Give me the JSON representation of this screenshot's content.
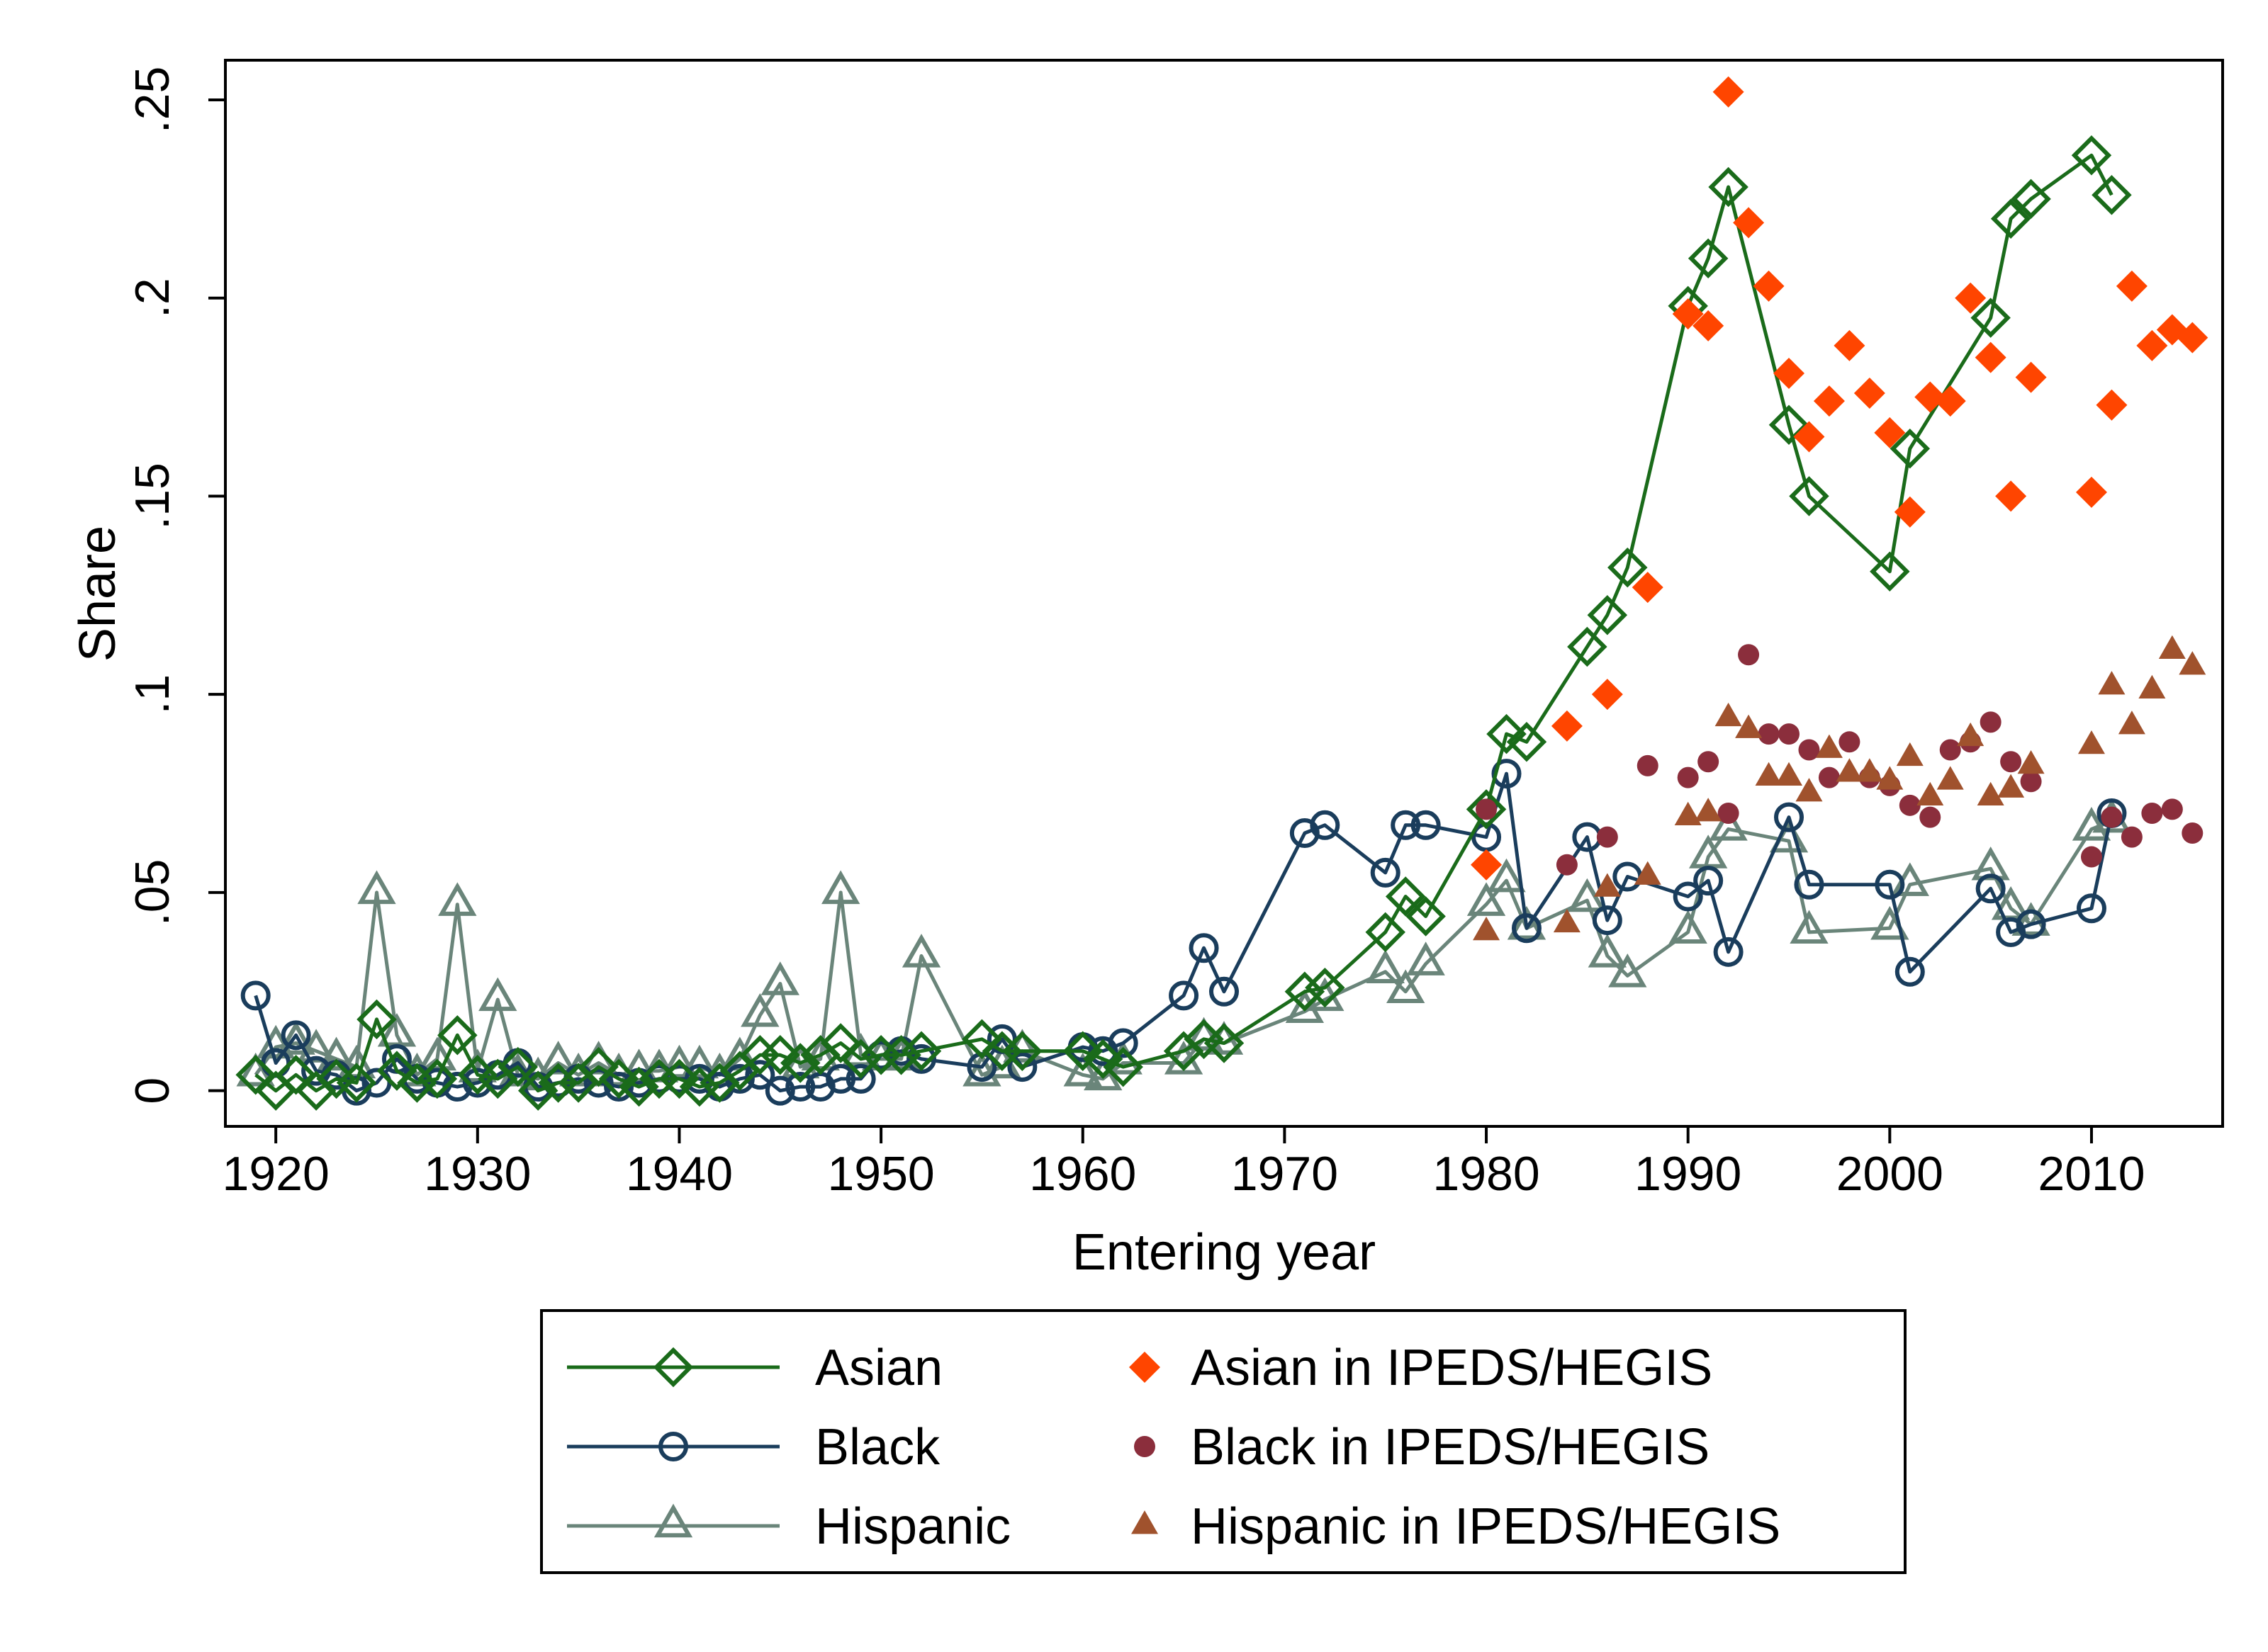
{
  "chart_data": {
    "type": "scatter",
    "title": "",
    "xlabel": "Entering year",
    "ylabel": "Share",
    "xlim": [
      1917.5,
      2016.5
    ],
    "ylim": [
      -0.009,
      0.26
    ],
    "x_ticks": [
      1920,
      1930,
      1940,
      1950,
      1960,
      1970,
      1980,
      1990,
      2000,
      2010
    ],
    "x_tick_labels": [
      "1920",
      "1930",
      "1940",
      "1950",
      "1960",
      "1970",
      "1980",
      "1990",
      "2000",
      "2010"
    ],
    "y_ticks": [
      0,
      0.05,
      0.1,
      0.15,
      0.2,
      0.25
    ],
    "y_tick_labels": [
      "0",
      ".05",
      ".1",
      ".15",
      ".2",
      ".25"
    ],
    "grid": false,
    "legend_position": "bottom",
    "series": [
      {
        "name": "Asian",
        "style": "line-marker",
        "marker": "diamond-hollow",
        "color": "#1a6b1a",
        "points": [
          [
            1919,
            0.004
          ],
          [
            1920,
            0.0
          ],
          [
            1921,
            0.004
          ],
          [
            1922,
            0.0
          ],
          [
            1923,
            0.003
          ],
          [
            1924,
            0.002
          ],
          [
            1925,
            0.018
          ],
          [
            1926,
            0.005
          ],
          [
            1927,
            0.002
          ],
          [
            1928,
            0.003
          ],
          [
            1929,
            0.014
          ],
          [
            1930,
            0.004
          ],
          [
            1931,
            0.003
          ],
          [
            1932,
            0.006
          ],
          [
            1933,
            0.0
          ],
          [
            1934,
            0.002
          ],
          [
            1935,
            0.002
          ],
          [
            1936,
            0.006
          ],
          [
            1937,
            0.003
          ],
          [
            1938,
            0.001
          ],
          [
            1939,
            0.003
          ],
          [
            1940,
            0.003
          ],
          [
            1941,
            0.001
          ],
          [
            1942,
            0.002
          ],
          [
            1943,
            0.005
          ],
          [
            1944,
            0.009
          ],
          [
            1945,
            0.009
          ],
          [
            1946,
            0.007
          ],
          [
            1947,
            0.009
          ],
          [
            1948,
            0.012
          ],
          [
            1949,
            0.008
          ],
          [
            1950,
            0.009
          ],
          [
            1951,
            0.009
          ],
          [
            1952,
            0.01
          ],
          [
            1955,
            0.013
          ],
          [
            1956,
            0.01
          ],
          [
            1957,
            0.01
          ],
          [
            1960,
            0.01
          ],
          [
            1961,
            0.008
          ],
          [
            1962,
            0.006
          ],
          [
            1965,
            0.01
          ],
          [
            1966,
            0.013
          ],
          [
            1967,
            0.012
          ],
          [
            1971,
            0.025
          ],
          [
            1972,
            0.026
          ],
          [
            1975,
            0.04
          ],
          [
            1976,
            0.049
          ],
          [
            1977,
            0.044
          ],
          [
            1980,
            0.071
          ],
          [
            1981,
            0.09
          ],
          [
            1982,
            0.088
          ],
          [
            1985,
            0.112
          ],
          [
            1986,
            0.12
          ],
          [
            1987,
            0.132
          ],
          [
            1990,
            0.198
          ],
          [
            1991,
            0.21
          ],
          [
            1992,
            0.228
          ],
          [
            1995,
            0.168
          ],
          [
            1996,
            0.15
          ],
          [
            2000,
            0.131
          ],
          [
            2001,
            0.162
          ],
          [
            2005,
            0.195
          ],
          [
            2006,
            0.22
          ],
          [
            2007,
            0.225
          ],
          [
            2010,
            0.236
          ],
          [
            2011,
            0.226
          ]
        ]
      },
      {
        "name": "Black",
        "style": "line-marker",
        "marker": "circle-hollow",
        "color": "#1a3d5c",
        "points": [
          [
            1919,
            0.024
          ],
          [
            1920,
            0.007
          ],
          [
            1921,
            0.014
          ],
          [
            1922,
            0.005
          ],
          [
            1923,
            0.004
          ],
          [
            1924,
            0.0
          ],
          [
            1925,
            0.002
          ],
          [
            1926,
            0.008
          ],
          [
            1927,
            0.003
          ],
          [
            1928,
            0.002
          ],
          [
            1929,
            0.001
          ],
          [
            1930,
            0.002
          ],
          [
            1931,
            0.004
          ],
          [
            1932,
            0.007
          ],
          [
            1933,
            0.001
          ],
          [
            1934,
            0.002
          ],
          [
            1935,
            0.003
          ],
          [
            1936,
            0.002
          ],
          [
            1937,
            0.001
          ],
          [
            1938,
            0.002
          ],
          [
            1939,
            0.003
          ],
          [
            1940,
            0.003
          ],
          [
            1941,
            0.003
          ],
          [
            1942,
            0.001
          ],
          [
            1943,
            0.003
          ],
          [
            1944,
            0.004
          ],
          [
            1945,
            0.0
          ],
          [
            1946,
            0.001
          ],
          [
            1947,
            0.001
          ],
          [
            1948,
            0.003
          ],
          [
            1949,
            0.003
          ],
          [
            1950,
            0.009
          ],
          [
            1951,
            0.01
          ],
          [
            1952,
            0.008
          ],
          [
            1955,
            0.006
          ],
          [
            1956,
            0.013
          ],
          [
            1957,
            0.006
          ],
          [
            1960,
            0.011
          ],
          [
            1961,
            0.01
          ],
          [
            1962,
            0.012
          ],
          [
            1965,
            0.024
          ],
          [
            1966,
            0.036
          ],
          [
            1967,
            0.025
          ],
          [
            1971,
            0.065
          ],
          [
            1972,
            0.067
          ],
          [
            1975,
            0.055
          ],
          [
            1976,
            0.067
          ],
          [
            1977,
            0.067
          ],
          [
            1980,
            0.064
          ],
          [
            1981,
            0.08
          ],
          [
            1982,
            0.041
          ],
          [
            1985,
            0.064
          ],
          [
            1986,
            0.043
          ],
          [
            1987,
            0.054
          ],
          [
            1990,
            0.049
          ],
          [
            1991,
            0.053
          ],
          [
            1992,
            0.035
          ],
          [
            1995,
            0.069
          ],
          [
            1996,
            0.052
          ],
          [
            2000,
            0.052
          ],
          [
            2001,
            0.03
          ],
          [
            2005,
            0.051
          ],
          [
            2006,
            0.04
          ],
          [
            2007,
            0.042
          ],
          [
            2010,
            0.046
          ],
          [
            2011,
            0.07
          ]
        ]
      },
      {
        "name": "Hispanic",
        "style": "line-marker",
        "marker": "triangle-hollow",
        "color": "#6a857a",
        "points": [
          [
            1919,
            0.004
          ],
          [
            1920,
            0.011
          ],
          [
            1921,
            0.012
          ],
          [
            1922,
            0.01
          ],
          [
            1923,
            0.008
          ],
          [
            1924,
            0.006
          ],
          [
            1925,
            0.05
          ],
          [
            1926,
            0.014
          ],
          [
            1927,
            0.004
          ],
          [
            1928,
            0.008
          ],
          [
            1929,
            0.047
          ],
          [
            1930,
            0.005
          ],
          [
            1931,
            0.023
          ],
          [
            1932,
            0.004
          ],
          [
            1933,
            0.003
          ],
          [
            1934,
            0.007
          ],
          [
            1935,
            0.004
          ],
          [
            1936,
            0.007
          ],
          [
            1937,
            0.004
          ],
          [
            1938,
            0.005
          ],
          [
            1939,
            0.005
          ],
          [
            1940,
            0.006
          ],
          [
            1941,
            0.006
          ],
          [
            1942,
            0.004
          ],
          [
            1943,
            0.008
          ],
          [
            1944,
            0.019
          ],
          [
            1945,
            0.027
          ],
          [
            1946,
            0.006
          ],
          [
            1947,
            0.008
          ],
          [
            1948,
            0.05
          ],
          [
            1949,
            0.009
          ],
          [
            1950,
            0.008
          ],
          [
            1951,
            0.008
          ],
          [
            1952,
            0.034
          ],
          [
            1955,
            0.004
          ],
          [
            1956,
            0.006
          ],
          [
            1957,
            0.01
          ],
          [
            1960,
            0.004
          ],
          [
            1961,
            0.003
          ],
          [
            1962,
            0.007
          ],
          [
            1965,
            0.007
          ],
          [
            1966,
            0.013
          ],
          [
            1967,
            0.012
          ],
          [
            1971,
            0.02
          ],
          [
            1972,
            0.023
          ],
          [
            1975,
            0.03
          ],
          [
            1976,
            0.025
          ],
          [
            1977,
            0.032
          ],
          [
            1980,
            0.047
          ],
          [
            1981,
            0.053
          ],
          [
            1982,
            0.041
          ],
          [
            1985,
            0.048
          ],
          [
            1986,
            0.034
          ],
          [
            1987,
            0.029
          ],
          [
            1990,
            0.04
          ],
          [
            1991,
            0.059
          ],
          [
            1992,
            0.066
          ],
          [
            1995,
            0.063
          ],
          [
            1996,
            0.04
          ],
          [
            2000,
            0.041
          ],
          [
            2001,
            0.052
          ],
          [
            2005,
            0.056
          ],
          [
            2006,
            0.046
          ],
          [
            2007,
            0.042
          ],
          [
            2010,
            0.066
          ],
          [
            2011,
            0.068
          ]
        ]
      },
      {
        "name": "Asian in IPEDS/HEGIS",
        "style": "marker",
        "marker": "diamond-filled",
        "color": "#ff4500",
        "points": [
          [
            1980,
            0.057
          ],
          [
            1984,
            0.092
          ],
          [
            1986,
            0.1
          ],
          [
            1988,
            0.127
          ],
          [
            1990,
            0.196
          ],
          [
            1991,
            0.193
          ],
          [
            1992,
            0.252
          ],
          [
            1993,
            0.219
          ],
          [
            1994,
            0.203
          ],
          [
            1995,
            0.181
          ],
          [
            1996,
            0.165
          ],
          [
            1997,
            0.174
          ],
          [
            1998,
            0.188
          ],
          [
            1999,
            0.176
          ],
          [
            2000,
            0.166
          ],
          [
            2001,
            0.146
          ],
          [
            2002,
            0.175
          ],
          [
            2003,
            0.174
          ],
          [
            2004,
            0.2
          ],
          [
            2005,
            0.185
          ],
          [
            2006,
            0.15
          ],
          [
            2007,
            0.18
          ],
          [
            2010,
            0.151
          ],
          [
            2011,
            0.173
          ],
          [
            2012,
            0.203
          ],
          [
            2013,
            0.188
          ],
          [
            2014,
            0.192
          ],
          [
            2015,
            0.19
          ]
        ]
      },
      {
        "name": "Black in IPEDS/HEGIS",
        "style": "marker",
        "marker": "circle-filled",
        "color": "#8b2e3c",
        "points": [
          [
            1980,
            0.071
          ],
          [
            1984,
            0.057
          ],
          [
            1986,
            0.064
          ],
          [
            1988,
            0.082
          ],
          [
            1990,
            0.079
          ],
          [
            1991,
            0.083
          ],
          [
            1992,
            0.07
          ],
          [
            1993,
            0.11
          ],
          [
            1994,
            0.09
          ],
          [
            1995,
            0.09
          ],
          [
            1996,
            0.086
          ],
          [
            1997,
            0.079
          ],
          [
            1998,
            0.088
          ],
          [
            1999,
            0.079
          ],
          [
            2000,
            0.077
          ],
          [
            2001,
            0.072
          ],
          [
            2002,
            0.069
          ],
          [
            2003,
            0.086
          ],
          [
            2004,
            0.088
          ],
          [
            2005,
            0.093
          ],
          [
            2006,
            0.083
          ],
          [
            2007,
            0.078
          ],
          [
            2010,
            0.059
          ],
          [
            2011,
            0.069
          ],
          [
            2012,
            0.064
          ],
          [
            2013,
            0.07
          ],
          [
            2014,
            0.071
          ],
          [
            2015,
            0.065
          ]
        ]
      },
      {
        "name": "Hispanic in IPEDS/HEGIS",
        "style": "marker",
        "marker": "triangle-filled",
        "color": "#a0522d",
        "points": [
          [
            1980,
            0.04
          ],
          [
            1984,
            0.042
          ],
          [
            1986,
            0.051
          ],
          [
            1988,
            0.054
          ],
          [
            1990,
            0.069
          ],
          [
            1991,
            0.07
          ],
          [
            1992,
            0.094
          ],
          [
            1993,
            0.091
          ],
          [
            1994,
            0.079
          ],
          [
            1995,
            0.079
          ],
          [
            1996,
            0.075
          ],
          [
            1997,
            0.086
          ],
          [
            1998,
            0.08
          ],
          [
            1999,
            0.08
          ],
          [
            2000,
            0.078
          ],
          [
            2001,
            0.084
          ],
          [
            2002,
            0.074
          ],
          [
            2003,
            0.078
          ],
          [
            2004,
            0.089
          ],
          [
            2005,
            0.074
          ],
          [
            2006,
            0.076
          ],
          [
            2007,
            0.082
          ],
          [
            2010,
            0.087
          ],
          [
            2011,
            0.102
          ],
          [
            2012,
            0.092
          ],
          [
            2013,
            0.101
          ],
          [
            2014,
            0.111
          ],
          [
            2015,
            0.107
          ]
        ]
      }
    ]
  }
}
